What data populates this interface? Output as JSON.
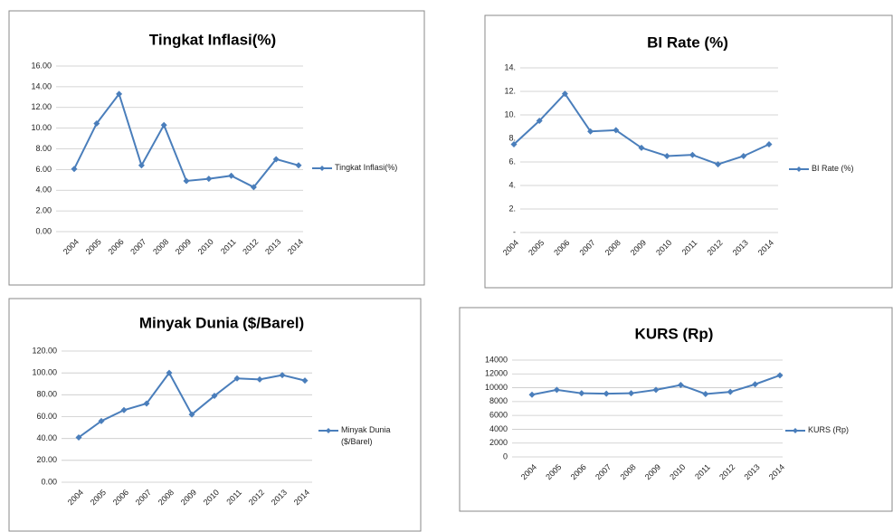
{
  "chart_data": [
    {
      "type": "line",
      "title": "Tingkat Inflasi(%)",
      "categories": [
        "2004",
        "2005",
        "2006",
        "2007",
        "2008",
        "2009",
        "2010",
        "2011",
        "2012",
        "2013",
        "2014"
      ],
      "series": [
        {
          "name": "Tingkat Inflasi(%)",
          "color": "#4a7ebb",
          "values": [
            6.06,
            10.45,
            13.3,
            6.4,
            10.3,
            4.9,
            5.1,
            5.4,
            4.3,
            7.0,
            6.4
          ]
        }
      ],
      "ylim": [
        0,
        16
      ],
      "yticks": [
        {
          "value": 0,
          "label": "0.00"
        },
        {
          "value": 2,
          "label": "2.00"
        },
        {
          "value": 4,
          "label": "4.00"
        },
        {
          "value": 6,
          "label": "6.00"
        },
        {
          "value": 8,
          "label": "8.00"
        },
        {
          "value": 10,
          "label": "10.00"
        },
        {
          "value": 12,
          "label": "12.00"
        },
        {
          "value": 14,
          "label": "14.00"
        },
        {
          "value": 16,
          "label": "16.00"
        }
      ],
      "grid": true
    },
    {
      "type": "line",
      "title": "BI Rate  (%)",
      "categories": [
        "2004",
        "2005",
        "2006",
        "2007",
        "2008",
        "2009",
        "2010",
        "2011",
        "2012",
        "2013",
        "2014"
      ],
      "series": [
        {
          "name": "BI Rate  (%)",
          "color": "#4a7ebb",
          "values": [
            7.5,
            9.5,
            11.8,
            8.6,
            8.7,
            7.2,
            6.5,
            6.6,
            5.8,
            6.5,
            7.5
          ]
        }
      ],
      "ylim": [
        0,
        14
      ],
      "yticks": [
        {
          "value": 0,
          "label": "-"
        },
        {
          "value": 2,
          "label": "2."
        },
        {
          "value": 4,
          "label": "4."
        },
        {
          "value": 6,
          "label": "6."
        },
        {
          "value": 8,
          "label": "8."
        },
        {
          "value": 10,
          "label": "10."
        },
        {
          "value": 12,
          "label": "12."
        },
        {
          "value": 14,
          "label": "14."
        }
      ],
      "grid": true
    },
    {
      "type": "line",
      "title": "Minyak Dunia ($/Barel)",
      "categories": [
        "2004",
        "2005",
        "2006",
        "2007",
        "2008",
        "2009",
        "2010",
        "2011",
        "2012",
        "2013",
        "2014"
      ],
      "series": [
        {
          "name": "Minyak Dunia ($/Barel)",
          "color": "#4a7ebb",
          "values": [
            41,
            56,
            66,
            72,
            100,
            62,
            79,
            95,
            94,
            98,
            93
          ]
        }
      ],
      "ylim": [
        0,
        120
      ],
      "yticks": [
        {
          "value": 0,
          "label": "0.00"
        },
        {
          "value": 20,
          "label": "20.00"
        },
        {
          "value": 40,
          "label": "40.00"
        },
        {
          "value": 60,
          "label": "60.00"
        },
        {
          "value": 80,
          "label": "80.00"
        },
        {
          "value": 100,
          "label": "100.00"
        },
        {
          "value": 120,
          "label": "120.00"
        }
      ],
      "grid": true
    },
    {
      "type": "line",
      "title": "KURS (Rp)",
      "categories": [
        "2004",
        "2005",
        "2006",
        "2007",
        "2008",
        "2009",
        "2010",
        "2011",
        "2012",
        "2013",
        "2014"
      ],
      "series": [
        {
          "name": "KURS (Rp)",
          "color": "#4a7ebb",
          "values": [
            9000,
            9700,
            9200,
            9150,
            9200,
            9700,
            10400,
            9100,
            9400,
            10500,
            11800
          ]
        }
      ],
      "ylim": [
        0,
        14000
      ],
      "yticks": [
        0,
        2000,
        4000,
        6000,
        8000,
        10000,
        12000,
        14000
      ],
      "grid": true
    }
  ]
}
